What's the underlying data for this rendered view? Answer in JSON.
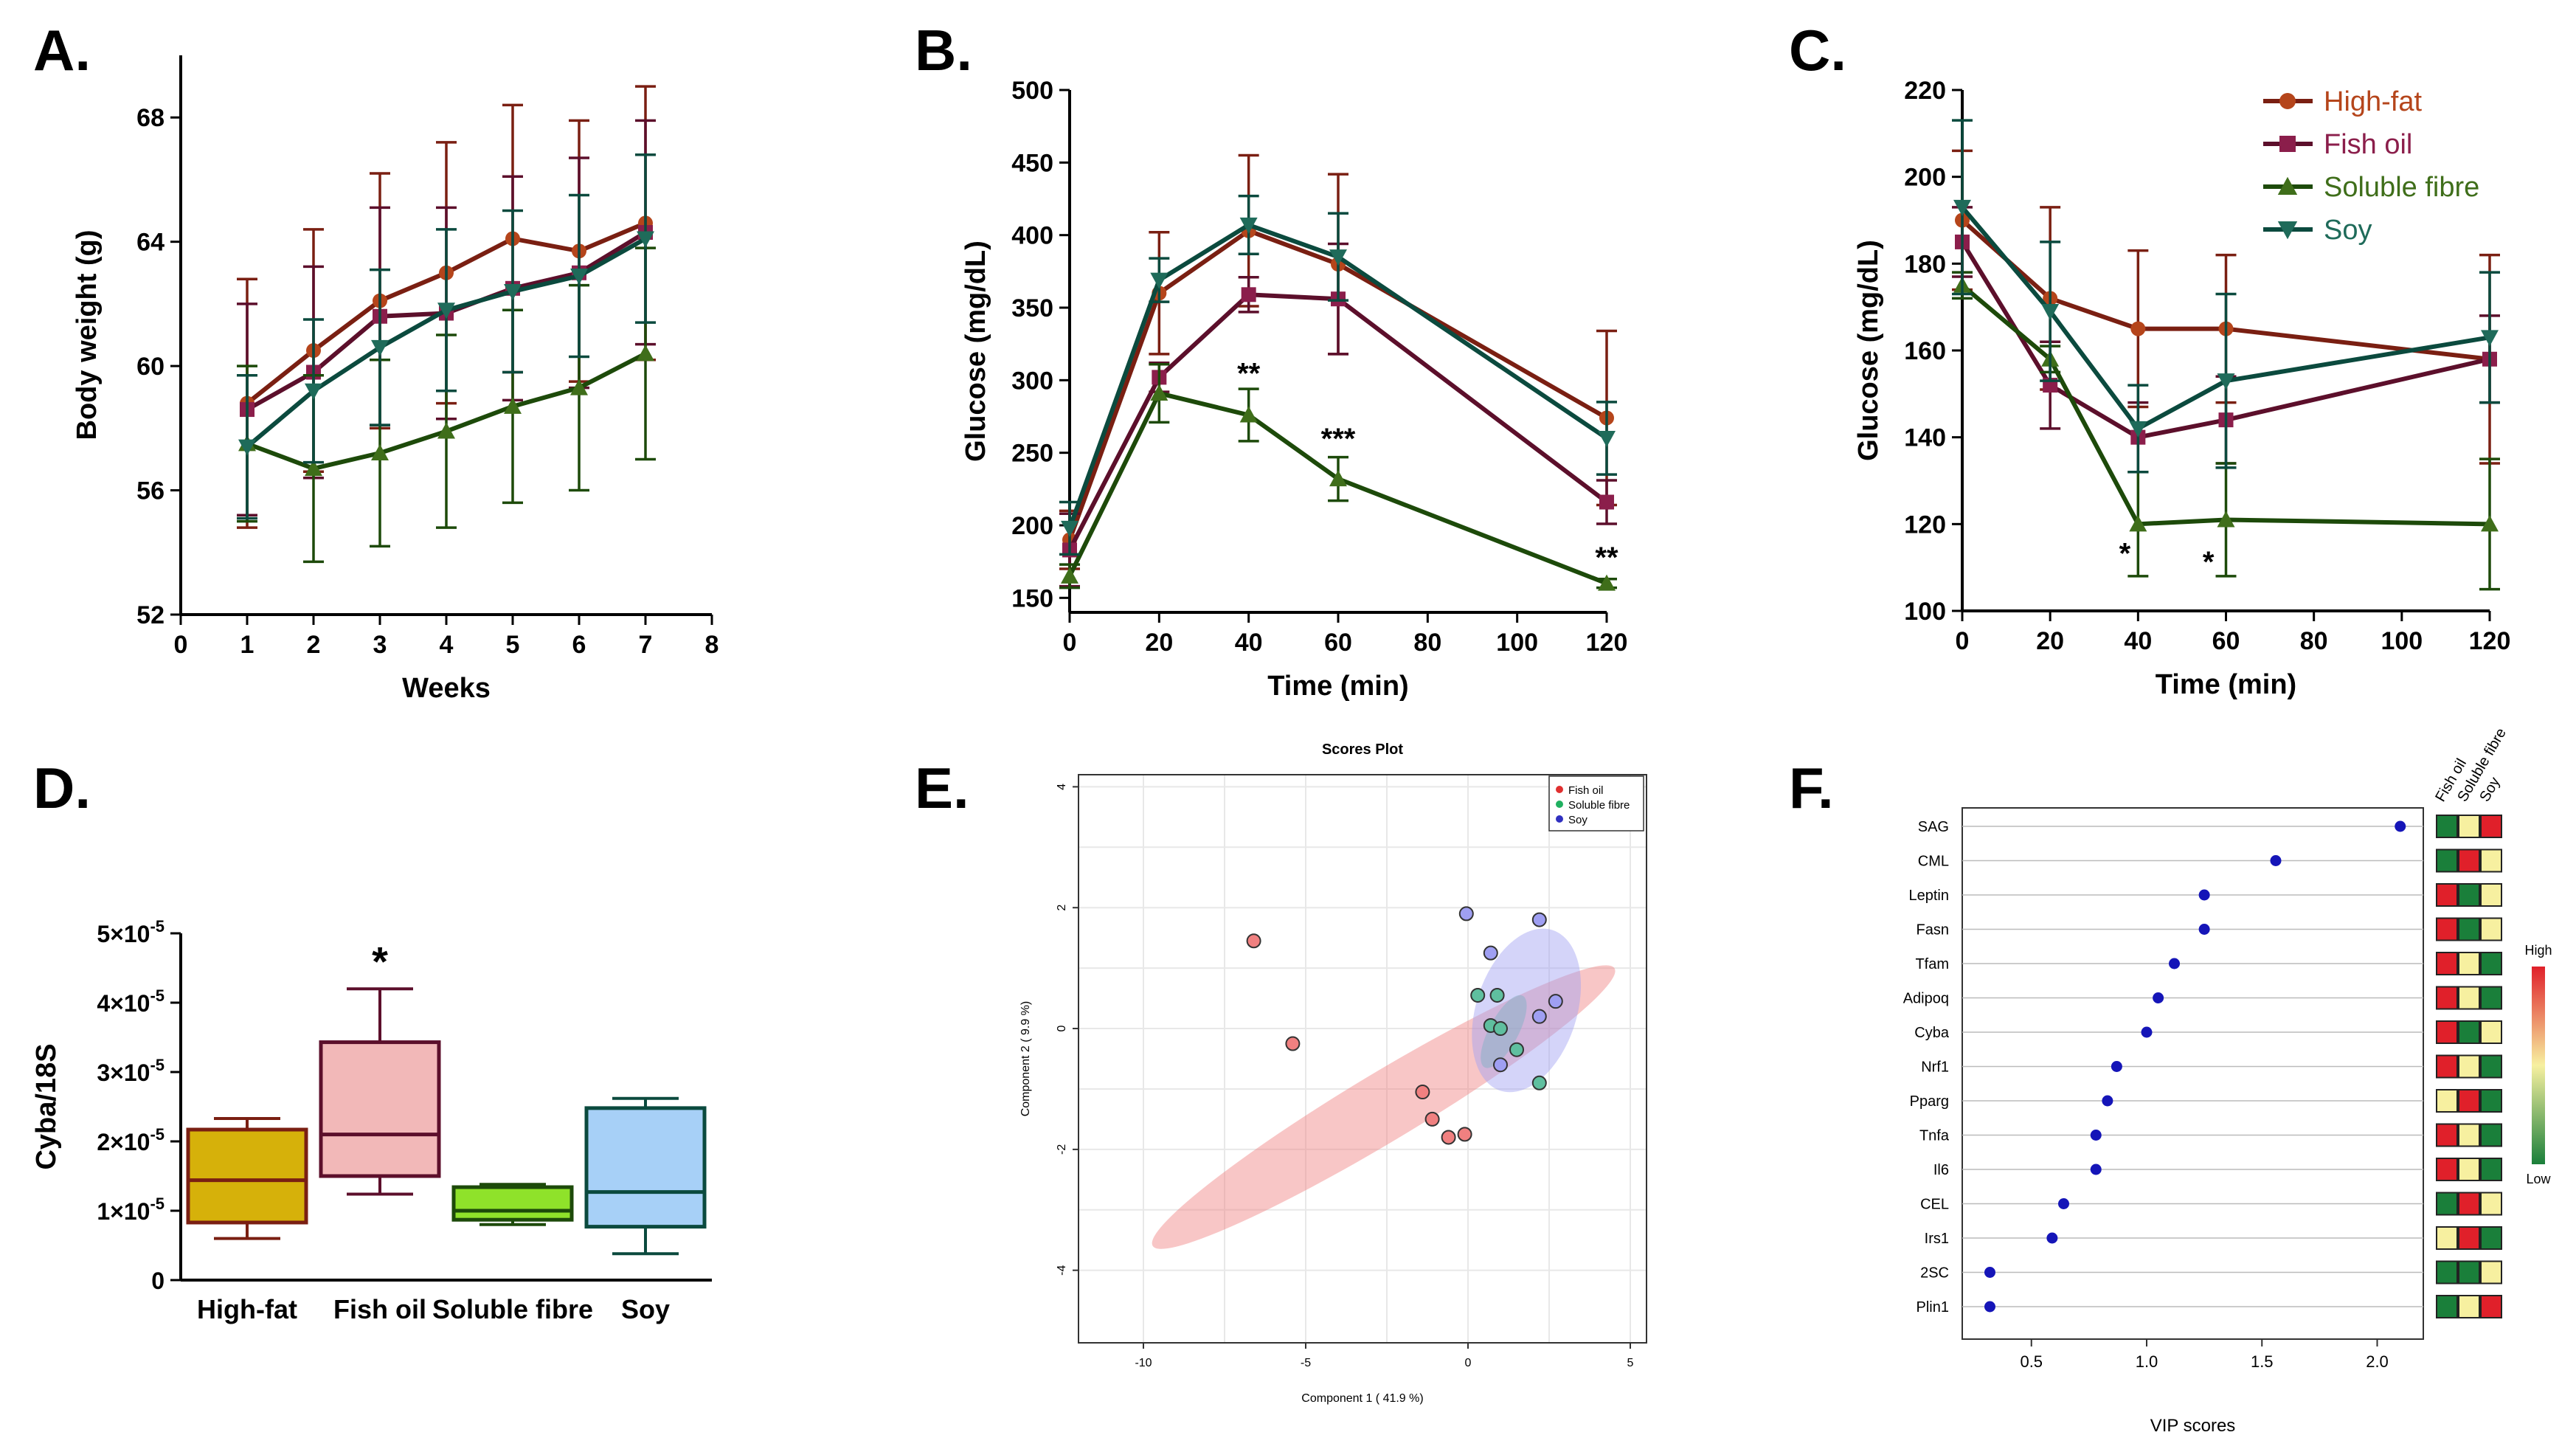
{
  "colors": {
    "high_fat": "#b5451b",
    "high_fat_line": "#7a1f12",
    "fish_oil": "#8b1e4b",
    "fish_oil_line": "#5c0f2b",
    "soluble_fibre": "#3f6e1a",
    "soluble_fibre_line": "#1d4a0a",
    "soy": "#1f6b5a",
    "soy_line": "#0b4a3e",
    "axis": "#000000"
  },
  "panels": {
    "A": "A.",
    "B": "B.",
    "C": "C.",
    "D": "D.",
    "E": "E.",
    "F": "F."
  },
  "legend": [
    {
      "label": "High-fat",
      "color": "#b5451b",
      "marker": "circle"
    },
    {
      "label": "Fish oil",
      "color": "#8b1e4b",
      "marker": "square"
    },
    {
      "label": "Soluble fibre",
      "color": "#3f6e1a",
      "marker": "triangle-up"
    },
    {
      "label": "Soy",
      "color": "#1f6b5a",
      "marker": "triangle-down"
    }
  ],
  "chart_data": [
    {
      "id": "A",
      "type": "line",
      "title": "",
      "xlabel": "Weeks",
      "ylabel": "Body weight (g)",
      "xlim": [
        0,
        8
      ],
      "ylim": [
        52,
        70
      ],
      "xticks": [
        "0",
        "1",
        "2",
        "3",
        "4",
        "5",
        "6",
        "7",
        "8"
      ],
      "yticks": [
        "52",
        "56",
        "60",
        "64",
        "68"
      ],
      "x": [
        1,
        2,
        3,
        4,
        5,
        6,
        7
      ],
      "series": [
        {
          "name": "High-fat",
          "values": [
            58.8,
            60.5,
            62.1,
            63.0,
            64.1,
            63.7,
            64.6
          ],
          "err": [
            4.0,
            3.9,
            4.1,
            4.2,
            4.3,
            4.2,
            4.4
          ]
        },
        {
          "name": "Fish oil",
          "values": [
            58.6,
            59.8,
            61.6,
            61.7,
            62.5,
            63.0,
            64.3
          ],
          "err": [
            3.4,
            3.4,
            3.5,
            3.4,
            3.6,
            3.7,
            3.6
          ]
        },
        {
          "name": "Soluble fibre",
          "values": [
            57.5,
            56.7,
            57.2,
            57.9,
            58.7,
            59.3,
            60.4
          ],
          "err": [
            2.5,
            3.0,
            3.0,
            3.1,
            3.1,
            3.3,
            3.4
          ]
        },
        {
          "name": "Soy",
          "values": [
            57.4,
            59.2,
            60.6,
            61.8,
            62.4,
            62.9,
            64.1
          ],
          "err": [
            2.3,
            2.3,
            2.5,
            2.6,
            2.6,
            2.6,
            2.7
          ]
        }
      ],
      "annotations": []
    },
    {
      "id": "B",
      "type": "line",
      "title": "",
      "xlabel": "Time (min)",
      "ylabel": "Glucose (mg/dL)",
      "xlim": [
        0,
        120
      ],
      "ylim": [
        140,
        500
      ],
      "xticks": [
        "0",
        "20",
        "40",
        "60",
        "80",
        "100",
        "120"
      ],
      "yticks": [
        "150",
        "200",
        "250",
        "300",
        "350",
        "400",
        "450",
        "500"
      ],
      "x": [
        0,
        20,
        40,
        60,
        120
      ],
      "series": [
        {
          "name": "High-fat",
          "values": [
            190,
            360,
            403,
            380,
            274
          ],
          "err": [
            20,
            42,
            52,
            62,
            60
          ]
        },
        {
          "name": "Fish oil",
          "values": [
            183,
            302,
            359,
            356,
            216
          ],
          "err": [
            25,
            10,
            12,
            38,
            15
          ]
        },
        {
          "name": "Soluble fibre",
          "values": [
            165,
            291,
            276,
            232,
            160
          ],
          "err": [
            8,
            20,
            18,
            15,
            3
          ]
        },
        {
          "name": "Soy",
          "values": [
            198,
            369,
            407,
            385,
            260
          ],
          "err": [
            18,
            15,
            20,
            30,
            25
          ]
        }
      ],
      "annotations": [
        {
          "x": 40,
          "y": 298,
          "text": "**"
        },
        {
          "x": 60,
          "y": 253,
          "text": "***"
        },
        {
          "x": 120,
          "y": 171,
          "text": "**"
        }
      ]
    },
    {
      "id": "C",
      "type": "line",
      "title": "",
      "xlabel": "Time (min)",
      "ylabel": "Glucose (mg/dL)",
      "xlim": [
        0,
        120
      ],
      "ylim": [
        100,
        220
      ],
      "xticks": [
        "0",
        "20",
        "40",
        "60",
        "80",
        "100",
        "120"
      ],
      "yticks": [
        "100",
        "120",
        "140",
        "160",
        "180",
        "200",
        "220"
      ],
      "x": [
        0,
        20,
        40,
        60,
        120
      ],
      "series": [
        {
          "name": "High-fat",
          "values": [
            190,
            172,
            165,
            165,
            158
          ],
          "err": [
            16,
            21,
            18,
            17,
            24
          ]
        },
        {
          "name": "Fish oil",
          "values": [
            185,
            152,
            140,
            144,
            158
          ],
          "err": [
            8,
            10,
            8,
            10,
            10
          ]
        },
        {
          "name": "Soluble fibre",
          "values": [
            175,
            158,
            120,
            121,
            120
          ],
          "err": [
            3,
            3,
            12,
            13,
            15
          ]
        },
        {
          "name": "Soy",
          "values": [
            193,
            169,
            142,
            153,
            163
          ],
          "err": [
            20,
            16,
            10,
            20,
            15
          ]
        }
      ],
      "annotations": [
        {
          "x": 37,
          "y": 111,
          "text": "*"
        },
        {
          "x": 56,
          "y": 109,
          "text": "*"
        }
      ]
    },
    {
      "id": "D",
      "type": "box",
      "title": "",
      "xlabel": "",
      "ylabel": "Cyba/18S",
      "ylim": [
        0,
        5e-05
      ],
      "ytick_labels": [
        {
          "value": 0,
          "mant": "0",
          "exp": ""
        },
        {
          "value": 1e-05,
          "mant": "1×10",
          "exp": "-5"
        },
        {
          "value": 2e-05,
          "mant": "2×10",
          "exp": "-5"
        },
        {
          "value": 3e-05,
          "mant": "3×10",
          "exp": "-5"
        },
        {
          "value": 4e-05,
          "mant": "4×10",
          "exp": "-5"
        },
        {
          "value": 5e-05,
          "mant": "5×10",
          "exp": "-5"
        }
      ],
      "categories": [
        "High-fat",
        "Fish oil",
        "Soluble fibre",
        "Soy"
      ],
      "boxes": [
        {
          "min": 6e-06,
          "q1": 8.3e-06,
          "median": 1.44e-05,
          "q3": 2.17e-05,
          "max": 2.33e-05,
          "fill": "#d6b10a",
          "stroke": "#7a1f12"
        },
        {
          "min": 1.24e-05,
          "q1": 1.5e-05,
          "median": 2.1e-05,
          "q3": 3.43e-05,
          "max": 4.2e-05,
          "fill": "#f2b8b8",
          "stroke": "#5c0f2b"
        },
        {
          "min": 8e-06,
          "q1": 8.7e-06,
          "median": 1e-05,
          "q3": 1.34e-05,
          "max": 1.38e-05,
          "fill": "#8fe22a",
          "stroke": "#1d4a0a"
        },
        {
          "min": 3.8e-06,
          "q1": 7.7e-06,
          "median": 1.27e-05,
          "q3": 2.48e-05,
          "max": 2.62e-05,
          "fill": "#a7d0f7",
          "stroke": "#0b4a3e"
        }
      ],
      "annotations": [
        {
          "category": "Fish oil",
          "y": 4.6e-05,
          "text": "*"
        }
      ]
    },
    {
      "id": "E",
      "type": "scatter",
      "title": "Scores Plot",
      "xlabel": "Component 1 ( 41.9 %)",
      "ylabel": "Component 2 ( 9.9 %)",
      "xlim": [
        -12,
        5.5
      ],
      "ylim": [
        -5.2,
        4.2
      ],
      "xticks": [
        "-10",
        "-5",
        "0",
        "5"
      ],
      "yticks": [
        "-4",
        "-2",
        "0",
        "2",
        "4"
      ],
      "legend": [
        "Fish oil",
        "Soluble fibre",
        "Soy"
      ],
      "groups": [
        {
          "name": "Fish oil",
          "color": "#f08080",
          "dot": "#e03030",
          "ellipse": {
            "cx": -2.6,
            "cy": -1.3,
            "rx": 8.3,
            "ry": 1.05,
            "angle": -31
          },
          "points": [
            [
              -6.6,
              1.45
            ],
            [
              -5.4,
              -0.25
            ],
            [
              -1.4,
              -1.05
            ],
            [
              -1.1,
              -1.5
            ],
            [
              -0.6,
              -1.8
            ],
            [
              -0.1,
              -1.75
            ]
          ]
        },
        {
          "name": "Soluble fibre",
          "color": "#5fbf9f",
          "dot": "#20b060",
          "ellipse": {
            "cx": 1.1,
            "cy": -0.05,
            "rx": 1.25,
            "ry": 0.45,
            "angle": -62
          },
          "points": [
            [
              0.3,
              0.55
            ],
            [
              0.9,
              0.55
            ],
            [
              0.7,
              0.05
            ],
            [
              1.0,
              0.0
            ],
            [
              1.5,
              -0.35
            ],
            [
              2.2,
              -0.9
            ]
          ]
        },
        {
          "name": "Soy",
          "color": "#9f9ff2",
          "dot": "#3030c0",
          "ellipse": {
            "cx": 1.8,
            "cy": 0.3,
            "rx": 2.6,
            "ry": 1.55,
            "angle": -72
          },
          "points": [
            [
              -0.05,
              1.9
            ],
            [
              2.2,
              1.8
            ],
            [
              0.7,
              1.25
            ],
            [
              2.7,
              0.45
            ],
            [
              2.2,
              0.2
            ],
            [
              1.0,
              -0.6
            ]
          ]
        }
      ]
    },
    {
      "id": "F",
      "type": "dot",
      "title": "",
      "xlabel": "VIP scores",
      "xlim": [
        0.2,
        2.2
      ],
      "xticks": [
        "0.5",
        "1.0",
        "1.5",
        "2.0"
      ],
      "heat_columns": [
        "Fish oil",
        "Soluble fibre",
        "Soy"
      ],
      "colorbar_high": "High",
      "colorbar_low": "Low",
      "heat_colors": {
        "high": "#e0202a",
        "mid": "#f7f0a0",
        "low": "#1a7f3a"
      },
      "items": [
        {
          "label": "SAG",
          "value": 2.1,
          "heat": [
            "low",
            "mid",
            "high"
          ]
        },
        {
          "label": "CML",
          "value": 1.56,
          "heat": [
            "low",
            "high",
            "mid"
          ]
        },
        {
          "label": "Leptin",
          "value": 1.25,
          "heat": [
            "high",
            "low",
            "mid"
          ]
        },
        {
          "label": "Fasn",
          "value": 1.25,
          "heat": [
            "high",
            "low",
            "mid"
          ]
        },
        {
          "label": "Tfam",
          "value": 1.12,
          "heat": [
            "high",
            "mid",
            "low"
          ]
        },
        {
          "label": "Adipoq",
          "value": 1.05,
          "heat": [
            "high",
            "mid",
            "low"
          ]
        },
        {
          "label": "Cyba",
          "value": 1.0,
          "heat": [
            "high",
            "low",
            "mid"
          ]
        },
        {
          "label": "Nrf1",
          "value": 0.87,
          "heat": [
            "high",
            "mid",
            "low"
          ]
        },
        {
          "label": "Pparg",
          "value": 0.83,
          "heat": [
            "mid",
            "high",
            "low"
          ]
        },
        {
          "label": "Tnfa",
          "value": 0.78,
          "heat": [
            "high",
            "mid",
            "low"
          ]
        },
        {
          "label": "Il6",
          "value": 0.78,
          "heat": [
            "high",
            "mid",
            "low"
          ]
        },
        {
          "label": "CEL",
          "value": 0.64,
          "heat": [
            "low",
            "high",
            "mid"
          ]
        },
        {
          "label": "Irs1",
          "value": 0.59,
          "heat": [
            "mid",
            "high",
            "low"
          ]
        },
        {
          "label": "2SC",
          "value": 0.32,
          "heat": [
            "low",
            "low",
            "mid"
          ]
        },
        {
          "label": "Plin1",
          "value": 0.32,
          "heat": [
            "low",
            "mid",
            "high"
          ]
        }
      ]
    }
  ]
}
